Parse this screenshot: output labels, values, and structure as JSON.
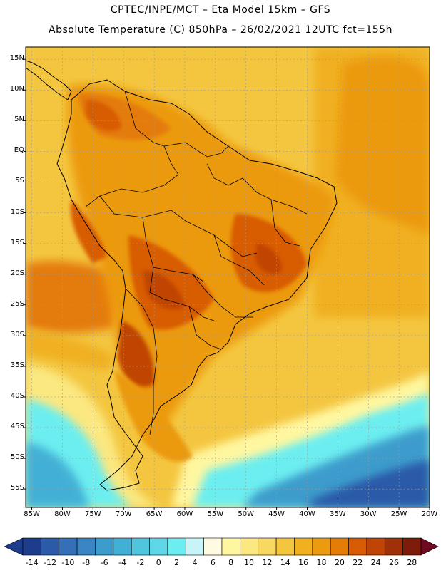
{
  "header": {
    "line1": "CPTEC/INPE/MCT –  Eta Model 15km – GFS",
    "line2": "Absolute Temperature (C) 850hPa – 26/02/2021 12UTC fct=155h"
  },
  "map": {
    "lat_labels": [
      "15N",
      "10N",
      "5N",
      "EQ",
      "5S",
      "10S",
      "15S",
      "20S",
      "25S",
      "30S",
      "35S",
      "40S",
      "45S",
      "50S",
      "55S"
    ],
    "lon_labels": [
      "85W",
      "80W",
      "75W",
      "70W",
      "65W",
      "60W",
      "55W",
      "50W",
      "45W",
      "40W",
      "35W",
      "30W",
      "25W",
      "20W"
    ],
    "lat_range": [
      17,
      -58
    ],
    "lon_range": [
      -86,
      -20
    ]
  },
  "colorbar": {
    "labels": [
      "-14",
      "-12",
      "-10",
      "-8",
      "-6",
      "-4",
      "-2",
      "0",
      "2",
      "4",
      "6",
      "8",
      "10",
      "12",
      "14",
      "16",
      "18",
      "20",
      "22",
      "24",
      "26",
      "28"
    ],
    "colors": [
      "#1e3c8c",
      "#2a5aa8",
      "#3370b8",
      "#3a86c4",
      "#3c9ccc",
      "#42b0d6",
      "#50c6de",
      "#5ed8e6",
      "#6ceef0",
      "#c8f4f8",
      "#fffbe0",
      "#fff7a0",
      "#fbe880",
      "#f8d860",
      "#f4c640",
      "#f0b020",
      "#ec9a10",
      "#e47c08",
      "#d85c06",
      "#c04406",
      "#a03008",
      "#7e1c0c"
    ]
  }
}
